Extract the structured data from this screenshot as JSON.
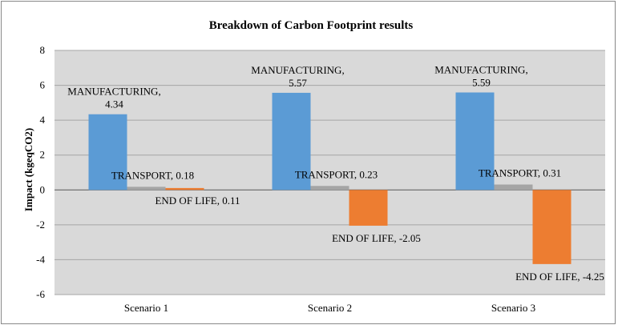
{
  "chart_data": {
    "type": "bar",
    "title": "Breakdown of Carbon Footprint results",
    "xlabel": "",
    "ylabel": "Impact (kgeqCO2)",
    "ylim": [
      -6,
      8
    ],
    "yticks": [
      -6,
      -4,
      -2,
      0,
      2,
      4,
      6,
      8
    ],
    "grid": true,
    "legend": "none",
    "categories": [
      "Scenario 1",
      "Scenario 2",
      "Scenario 3"
    ],
    "series": [
      {
        "name": "MANUFACTURING",
        "color": "#5b9bd5",
        "values": [
          4.34,
          5.57,
          5.59
        ]
      },
      {
        "name": "TRANSPORT",
        "color": "#a5a5a5",
        "values": [
          0.18,
          0.23,
          0.31
        ]
      },
      {
        "name": "END OF LIFE",
        "color": "#ed7d31",
        "values": [
          0.11,
          -2.05,
          -4.25
        ]
      }
    ],
    "data_labels": [
      [
        "MANUFACTURING,",
        "4.34"
      ],
      [
        "TRANSPORT, 0.18"
      ],
      [
        "END OF LIFE, 0.11"
      ],
      [
        "MANUFACTURING,",
        "5.57"
      ],
      [
        "TRANSPORT, 0.23"
      ],
      [
        "END OF LIFE, -2.05"
      ],
      [
        "MANUFACTURING,",
        "5.59"
      ],
      [
        "TRANSPORT, 0.31"
      ],
      [
        "END OF LIFE, -4.25"
      ]
    ]
  },
  "style": {
    "plot_background": "#d9d9d9",
    "gridline_color": "#a6a6a6",
    "axis_color": "#595959"
  }
}
